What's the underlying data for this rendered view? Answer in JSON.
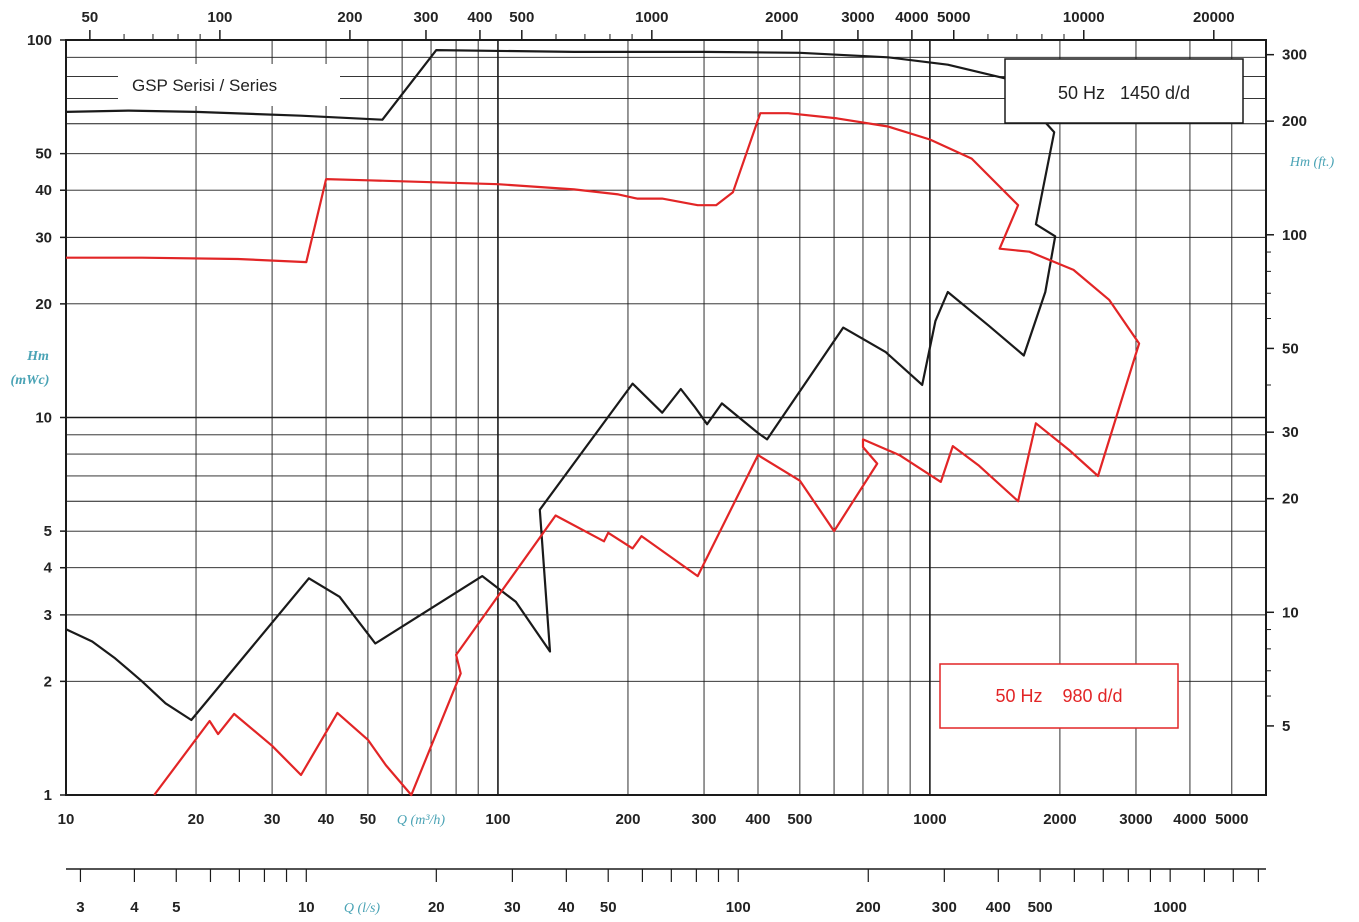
{
  "chart_data": {
    "type": "line",
    "title": "GSP Serisi / Series",
    "x_scale": "log",
    "y_scale": "log",
    "xlabel": "Q (m³/h)",
    "xlabel_q": "Q",
    "xlabel_unit": "(m³/h)",
    "xlabel_ls": "Q (l/s)",
    "ylabel_line1": "Hm",
    "ylabel_line2": "(mWc)",
    "ylabel_right": "Hm (ft.)",
    "xlim": [
      10,
      6000
    ],
    "ylim": [
      1,
      100
    ],
    "top_ticks_gpm": [
      "50",
      "100",
      "200",
      "300",
      "400",
      "500",
      "1000",
      "2000",
      "3000",
      "4000",
      "5000",
      "10000",
      "20000"
    ],
    "bottom_ticks_m3h": [
      "10",
      "20",
      "30",
      "40",
      "50",
      "100",
      "200",
      "300",
      "400",
      "500",
      "1000",
      "2000",
      "3000",
      "4000",
      "5000"
    ],
    "left_ticks_m": [
      "1",
      "2",
      "3",
      "4",
      "5",
      "10",
      "20",
      "30",
      "40",
      "50",
      "100"
    ],
    "right_ticks_ft": [
      "5",
      "10",
      "20",
      "30",
      "50",
      "100",
      "200",
      "300"
    ],
    "ls_ticks": [
      "3",
      "4",
      "5",
      "10",
      "20",
      "30",
      "40",
      "50",
      "100",
      "200",
      "300",
      "400",
      "500",
      "1000"
    ],
    "series": [
      {
        "name": "50 Hz   1450 d/d",
        "color": "#1a1a1a",
        "envelope": [
          [
            10,
            2.75
          ],
          [
            11.5,
            2.55
          ],
          [
            13,
            2.3
          ],
          [
            15,
            2.0
          ],
          [
            17,
            1.75
          ],
          [
            19.5,
            1.58
          ],
          [
            36.5,
            3.75
          ],
          [
            43,
            3.35
          ],
          [
            52,
            2.52
          ],
          [
            92,
            3.8
          ],
          [
            110,
            3.25
          ],
          [
            132,
            2.4
          ],
          [
            125,
            5.7
          ],
          [
            205,
            12.3
          ],
          [
            240,
            10.3
          ],
          [
            265,
            11.9
          ],
          [
            285,
            10.7
          ],
          [
            305,
            9.6
          ],
          [
            330,
            10.9
          ],
          [
            400,
            9.1
          ],
          [
            420,
            8.75
          ],
          [
            630,
            17.3
          ],
          [
            790,
            14.9
          ],
          [
            960,
            12.2
          ],
          [
            1030,
            18.0
          ],
          [
            1100,
            21.5
          ],
          [
            1370,
            17.5
          ],
          [
            1650,
            14.6
          ],
          [
            1850,
            21.5
          ],
          [
            1950,
            30.2
          ],
          [
            1760,
            32.5
          ],
          [
            1940,
            57
          ],
          [
            1500,
            79
          ],
          [
            1100,
            86
          ],
          [
            800,
            90
          ],
          [
            500,
            92.5
          ],
          [
            300,
            93
          ],
          [
            150,
            93
          ],
          [
            72,
            94
          ],
          [
            54,
            61.5
          ],
          [
            35,
            63
          ],
          [
            20,
            64.5
          ],
          [
            14,
            65
          ],
          [
            10,
            64.5
          ]
        ]
      },
      {
        "name": "50 Hz    980 d/d",
        "color": "#e22526",
        "envelope": [
          [
            16,
            1.0
          ],
          [
            21.5,
            1.57
          ],
          [
            22.5,
            1.45
          ],
          [
            24.5,
            1.64
          ],
          [
            30,
            1.35
          ],
          [
            35,
            1.13
          ],
          [
            42.5,
            1.65
          ],
          [
            50,
            1.4
          ],
          [
            55,
            1.2
          ],
          [
            63,
            1.0
          ],
          [
            82,
            2.1
          ],
          [
            80,
            2.35
          ],
          [
            136,
            5.5
          ],
          [
            176,
            4.7
          ],
          [
            180,
            4.95
          ],
          [
            205,
            4.5
          ],
          [
            215,
            4.85
          ],
          [
            290,
            3.8
          ],
          [
            400,
            7.95
          ],
          [
            500,
            6.8
          ],
          [
            600,
            5.0
          ],
          [
            755,
            7.55
          ],
          [
            700,
            8.35
          ],
          [
            700,
            8.75
          ],
          [
            850,
            7.95
          ],
          [
            1060,
            6.75
          ],
          [
            1130,
            8.4
          ],
          [
            1300,
            7.45
          ],
          [
            1600,
            6.0
          ],
          [
            1760,
            9.65
          ],
          [
            2100,
            8.2
          ],
          [
            2450,
            7.0
          ],
          [
            3050,
            15.7
          ],
          [
            2600,
            20.5
          ],
          [
            2150,
            24.6
          ],
          [
            1700,
            27.5
          ],
          [
            1450,
            28.0
          ],
          [
            1600,
            36.5
          ],
          [
            1250,
            48.5
          ],
          [
            1000,
            54.5
          ],
          [
            800,
            59
          ],
          [
            610,
            62
          ],
          [
            470,
            64
          ],
          [
            405,
            64
          ],
          [
            350,
            39.5
          ],
          [
            320,
            36.5
          ],
          [
            290,
            36.5
          ],
          [
            240,
            38
          ],
          [
            210,
            38
          ],
          [
            190,
            39
          ],
          [
            150,
            40.2
          ],
          [
            100,
            41.5
          ],
          [
            50,
            42.5
          ],
          [
            40,
            42.8
          ],
          [
            36,
            25.8
          ],
          [
            25,
            26.3
          ],
          [
            15,
            26.5
          ],
          [
            10,
            26.5
          ]
        ]
      }
    ],
    "box_1450": "50 Hz   1450 d/d",
    "box_980": "50 Hz    980 d/d",
    "colors": {
      "curve_1450": "#1a1a1a",
      "curve_980": "#e22526",
      "axis_label": "#4aa3b5",
      "grid": "#1a1a1a"
    }
  }
}
